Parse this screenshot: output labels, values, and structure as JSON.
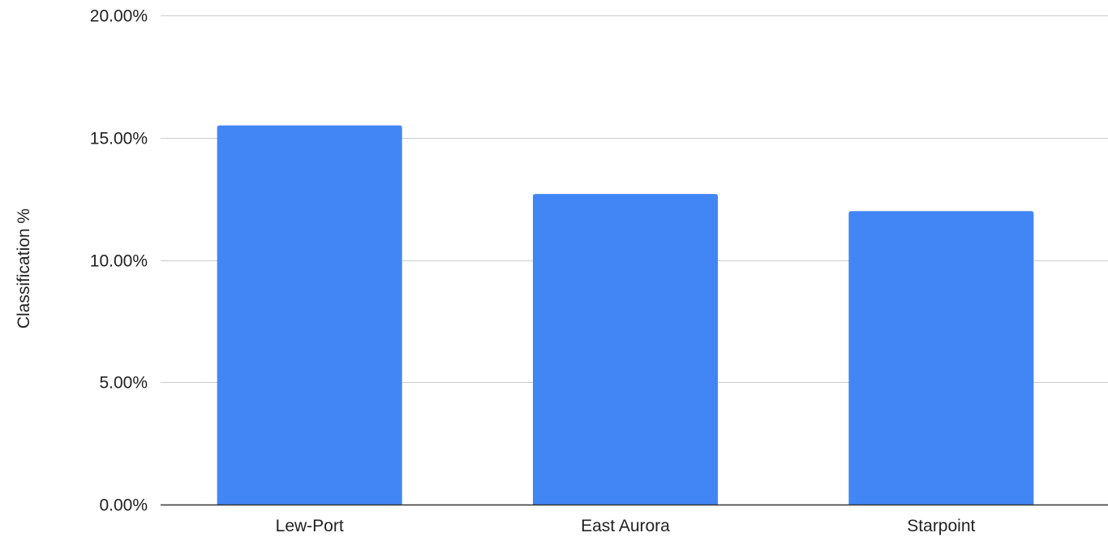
{
  "colors": {
    "bar": "#4285f4",
    "grid": "#cccccc",
    "axis": "#333333",
    "text": "#222222"
  },
  "chart_data": {
    "type": "bar",
    "title": "",
    "xlabel": "",
    "ylabel": "Classification %",
    "categories": [
      "Lew-Port",
      "East Aurora",
      "Starpoint"
    ],
    "series": [
      {
        "values": [
          15.5,
          12.7,
          12.0
        ]
      }
    ],
    "ylim": [
      0,
      20
    ],
    "y_ticks": [
      0,
      5,
      10,
      15,
      20
    ],
    "y_tick_labels": [
      "0.00%",
      "5.00%",
      "10.00%",
      "15.00%",
      "20.00%"
    ],
    "grid": true,
    "legend": "none"
  }
}
